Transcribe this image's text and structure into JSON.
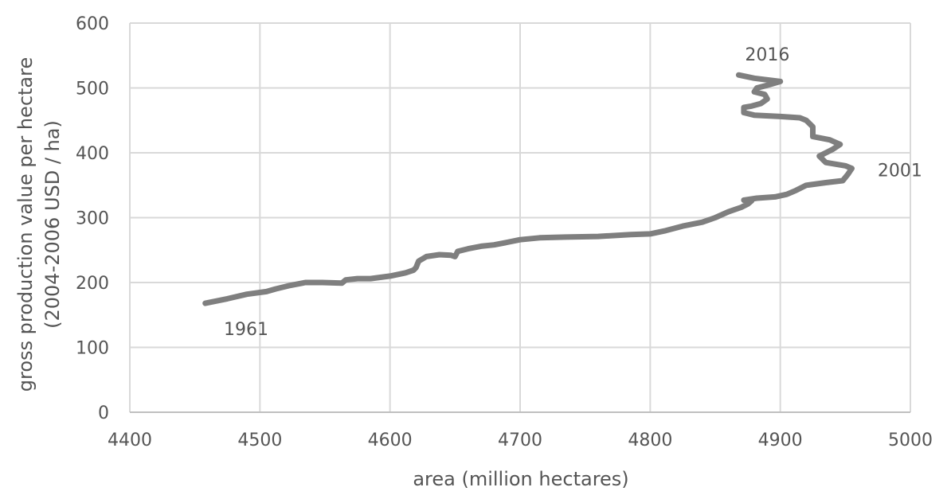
{
  "chart_data": {
    "type": "line",
    "title": "",
    "xlabel": "area (million hectares)",
    "ylabel_lines": [
      "gross production value per hectare",
      "(2004-2006 USD / ha)"
    ],
    "xlim": [
      4400,
      5000
    ],
    "ylim": [
      0,
      600
    ],
    "x_ticks": [
      "4400",
      "4500",
      "4600",
      "4700",
      "4800",
      "4900",
      "5000"
    ],
    "y_ticks": [
      "0",
      "100",
      "200",
      "300",
      "400",
      "500",
      "600"
    ],
    "grid": true,
    "legend": "none",
    "series_color": "#7f7f7f",
    "annotations": [
      {
        "text": "1961",
        "x": 4460,
        "y": 168
      },
      {
        "text": "2001",
        "x": 4954,
        "y": 376
      },
      {
        "text": "2016",
        "x": 4868,
        "y": 520
      }
    ],
    "series": [
      {
        "x": [
          4458,
          4475,
          4490,
          4505,
          4512,
          4522,
          4535,
          4548,
          4563,
          4566,
          4575,
          4585,
          4600,
          4612,
          4618,
          4620,
          4622,
          4628,
          4638,
          4647,
          4650,
          4652,
          4660,
          4670,
          4680,
          4690,
          4700,
          4715,
          4735,
          4760,
          4785,
          4800,
          4812,
          4825,
          4840,
          4850,
          4860,
          4870,
          4875,
          4878,
          4872,
          4882,
          4896,
          4905,
          4912,
          4920,
          4935,
          4948,
          4952,
          4955,
          4950,
          4935,
          4930,
          4940,
          4946,
          4938,
          4925,
          4925,
          4920,
          4915,
          4900,
          4880,
          4872,
          4872,
          4878,
          4885,
          4890,
          4888,
          4880,
          4882,
          4890,
          4900,
          4880,
          4868
        ],
        "y": [
          168,
          175,
          182,
          186,
          190,
          195,
          200,
          200,
          199,
          204,
          206,
          206,
          210,
          215,
          219,
          223,
          233,
          240,
          243,
          242,
          240,
          248,
          252,
          256,
          258,
          262,
          266,
          269,
          270,
          271,
          274,
          275,
          280,
          287,
          293,
          300,
          309,
          316,
          321,
          326,
          327,
          330,
          332,
          336,
          342,
          350,
          354,
          357,
          367,
          376,
          380,
          385,
          395,
          405,
          413,
          420,
          425,
          440,
          450,
          454,
          456,
          458,
          462,
          470,
          472,
          476,
          483,
          490,
          494,
          500,
          504,
          510,
          515,
          520
        ]
      }
    ]
  }
}
